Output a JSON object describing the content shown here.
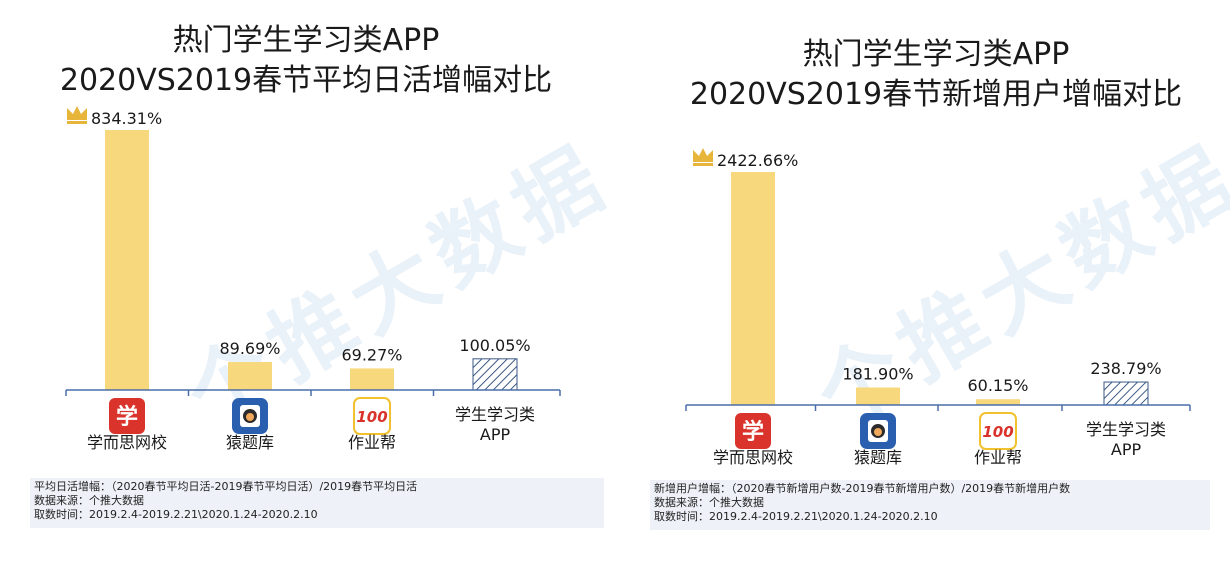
{
  "colors": {
    "bar": "#f7d87c",
    "hatch": "#3b5a86",
    "axis": "#4a6ea9",
    "crown": "#e8b53b",
    "note_bg": "#eef2f8",
    "app_icon_xueersi": "#d9332b",
    "app_icon_yuanti": "#2a5fb0",
    "app_icon_zuoye": "#f2c12e"
  },
  "watermark": "个推大数据",
  "chart_data": [
    {
      "type": "bar",
      "title": "热门学生学习类APP",
      "subtitle": "2020VS2019春节平均日活增幅对比",
      "categories": [
        "学而思网校",
        "猿题库",
        "作业帮",
        "学生学习类APP"
      ],
      "category_lines": [
        [
          "学而思网校"
        ],
        [
          "猿题库"
        ],
        [
          "作业帮"
        ],
        [
          "学生学习类",
          "APP"
        ]
      ],
      "values": [
        834.31,
        89.69,
        69.27,
        100.05
      ],
      "value_labels": [
        "834.31%",
        "89.69%",
        "69.27%",
        "100.05%"
      ],
      "hatched": [
        false,
        false,
        false,
        true
      ],
      "icons": [
        "app-xueersi-icon",
        "app-yuanti-icon",
        "app-zuoyebang-icon",
        null
      ],
      "crown_index": 0,
      "ylim": [
        0,
        834.31
      ],
      "xlabel": "",
      "ylabel": "",
      "notes": [
        "平均日活增幅：（2020春节平均日活-2019春节平均日活）/2019春节平均日活",
        "数据来源：个推大数据",
        "取数时间：2019.2.4-2019.2.21\\2020.1.24-2020.2.10"
      ]
    },
    {
      "type": "bar",
      "title": "热门学生学习类APP",
      "subtitle": "2020VS2019春节新增用户增幅对比",
      "categories": [
        "学而思网校",
        "猿题库",
        "作业帮",
        "学生学习类APP"
      ],
      "category_lines": [
        [
          "学而思网校"
        ],
        [
          "猿题库"
        ],
        [
          "作业帮"
        ],
        [
          "学生学习类",
          "APP"
        ]
      ],
      "values": [
        2422.66,
        181.9,
        60.15,
        238.79
      ],
      "value_labels": [
        "2422.66%",
        "181.90%",
        "60.15%",
        "238.79%"
      ],
      "hatched": [
        false,
        false,
        false,
        true
      ],
      "icons": [
        "app-xueersi-icon",
        "app-yuanti-icon",
        "app-zuoyebang-icon",
        null
      ],
      "crown_index": 0,
      "ylim": [
        0,
        2422.66
      ],
      "xlabel": "",
      "ylabel": "",
      "notes": [
        "新增用户增幅：（2020春节新增用户数-2019春节新增用户数）/2019春节新增用户数",
        "数据来源：个推大数据",
        "取数时间：2019.2.4-2019.2.21\\2020.1.24-2020.2.10"
      ]
    }
  ],
  "icon_glyphs": {
    "xueersi": "学",
    "yuanti": "●",
    "zuoyebang": "100"
  }
}
